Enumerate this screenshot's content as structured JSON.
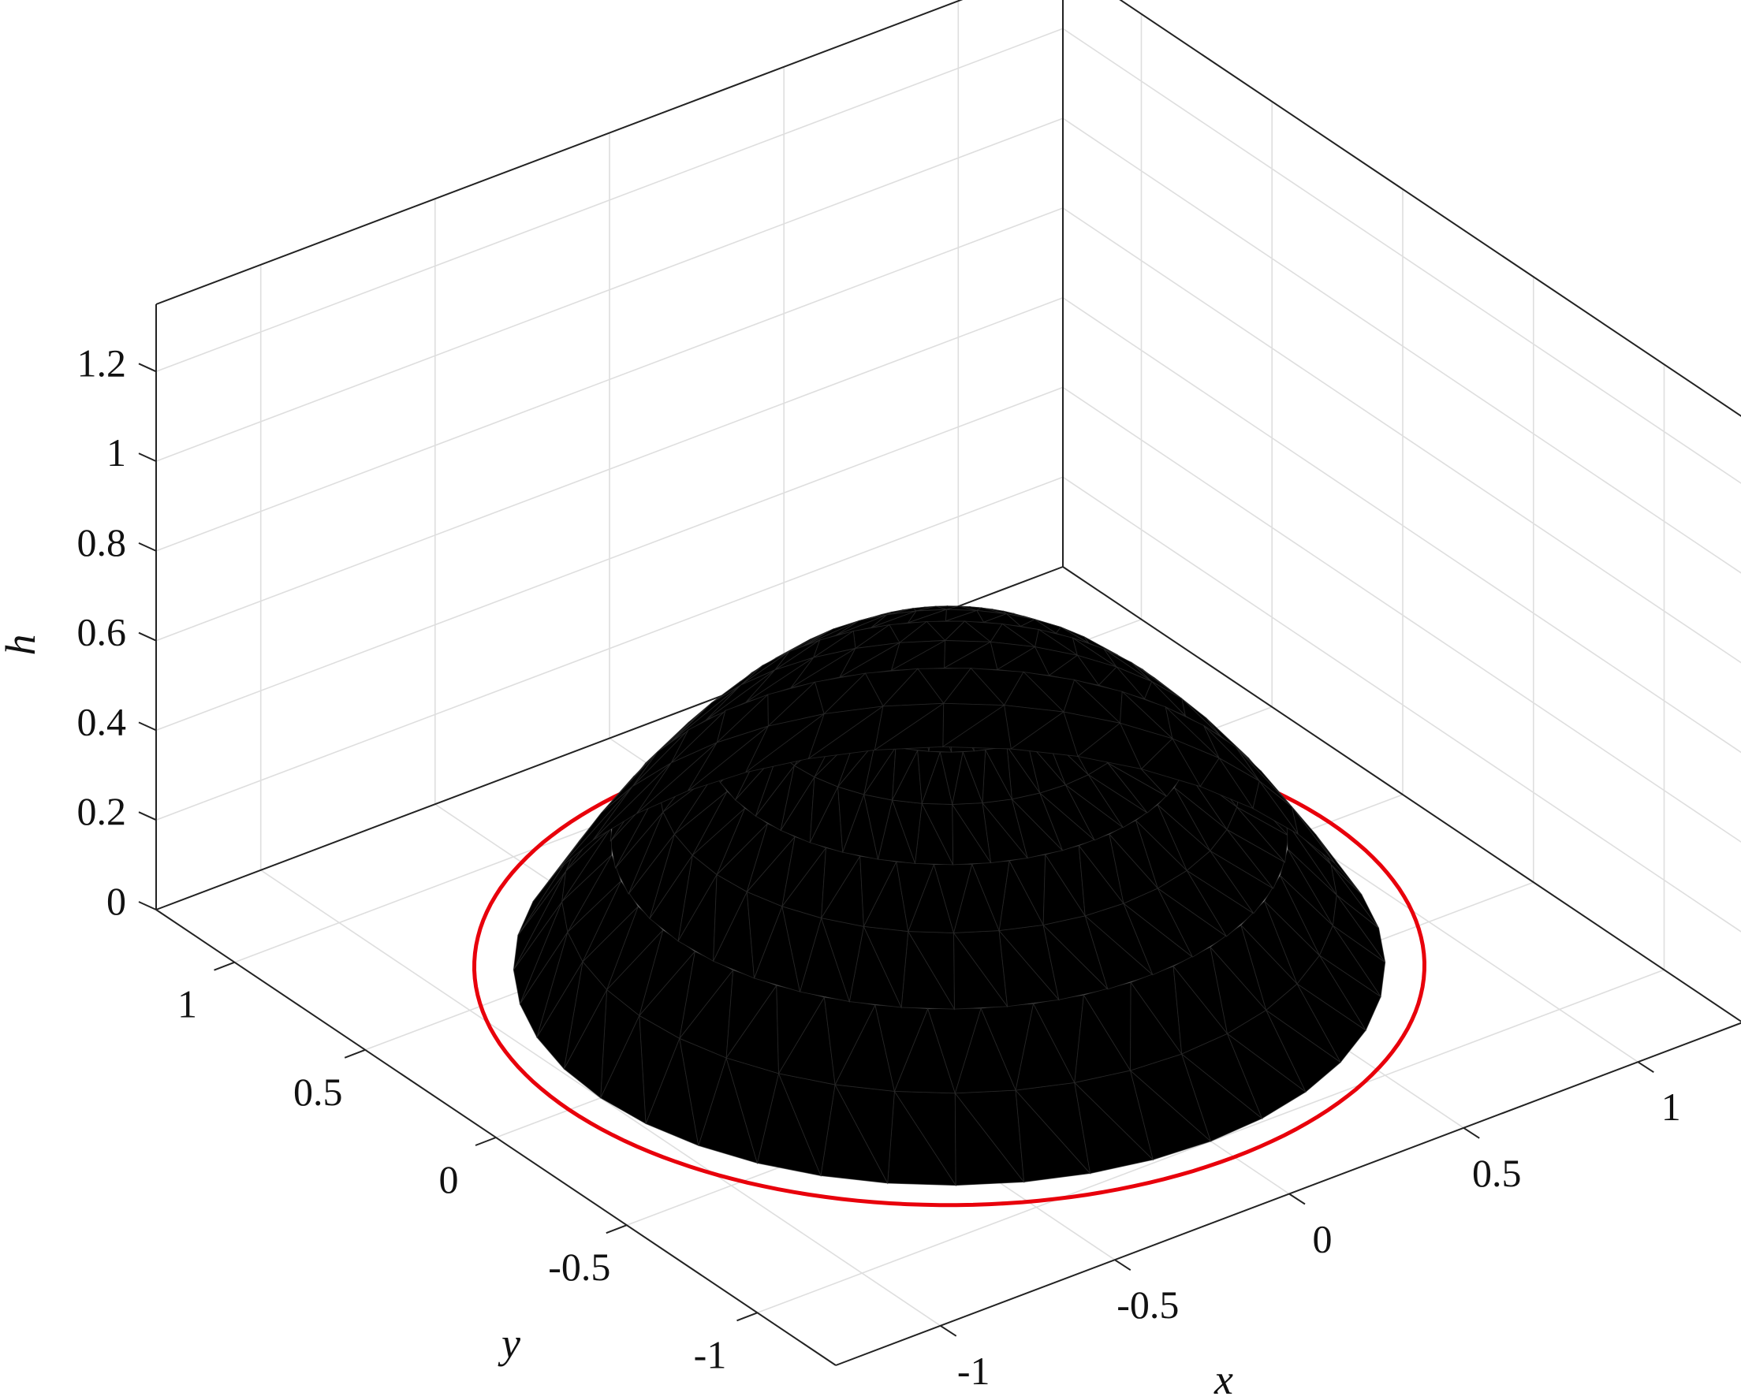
{
  "chart_data": {
    "type": "surface",
    "xlabel": "x",
    "ylabel": "y",
    "zlabel": "h",
    "xlim": [
      -1.3,
      1.3
    ],
    "ylim": [
      -1.3,
      1.3
    ],
    "zlim": [
      0,
      1.35
    ],
    "x_ticks": [
      "-1",
      "-0.5",
      "0",
      "0.5",
      "1"
    ],
    "y_ticks": [
      "-1",
      "-0.5",
      "0",
      "0.5",
      "1"
    ],
    "z_ticks": [
      "0",
      "0.2",
      "0.4",
      "0.6",
      "0.8",
      "1",
      "1.2"
    ],
    "grid": true,
    "colormap": "parula",
    "surface": {
      "shape": "dome",
      "radius": 1.0,
      "peak_height": 0.72,
      "edge_height": 0.0,
      "mesh": "triangular"
    },
    "contact_line": {
      "shape": "circle",
      "radius": 1.09,
      "z": 0,
      "color": "#e8000b"
    }
  }
}
